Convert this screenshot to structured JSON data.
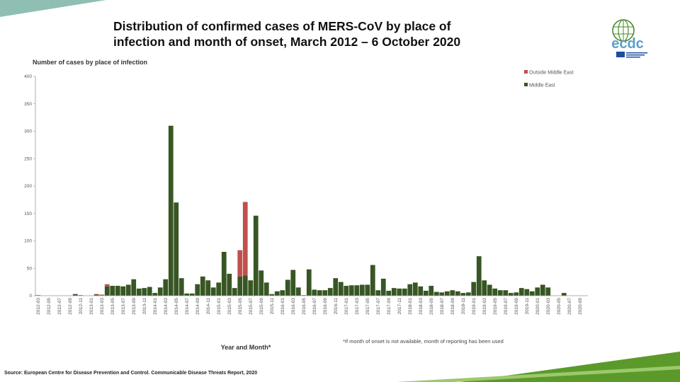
{
  "slide": {
    "title_line1": "Distribution of confirmed cases of MERS-CoV by place of",
    "title_line2": "infection and month of onset, March 2012 – 6 October 2020",
    "source": "Source: European Centre for Disease Prevention and Control. Communicable Disease Threats Report, 2020"
  },
  "logo": {
    "text": "ecdc",
    "icon": "ecdc-globe-logo"
  },
  "colors": {
    "middle_east": "#375623",
    "outside_middle_east": "#C0504D",
    "accent_green": "#5b9a2a",
    "accent_teal": "#8fbfb3"
  },
  "chart_data": {
    "type": "bar",
    "stacked": true,
    "title": "",
    "ylabel": "Number of cases by place of infection",
    "xlabel": "Year and Month*",
    "note": "*If month of onset is not available, month of reporting has been used",
    "ylim": [
      0,
      400
    ],
    "yticks": [
      0,
      50,
      100,
      150,
      200,
      250,
      300,
      350,
      400
    ],
    "legend_position": "top-right",
    "x_tick_labels": [
      "2012-03",
      "2012-05",
      "2012-07",
      "2012-09",
      "2012-11",
      "2013-01",
      "2013-03",
      "2013-05",
      "2013-07",
      "2013-09",
      "2013-11",
      "2014-01",
      "2014-03",
      "2014-05",
      "2014-07",
      "2014-09",
      "2014-11",
      "2015-01",
      "2015-03",
      "2015-05",
      "2015-07",
      "2015-09",
      "2015-11",
      "2016-01",
      "2016-03",
      "2016-05",
      "2016-07",
      "2016-09",
      "2016-11",
      "2017-01",
      "2017-03",
      "2017-05",
      "2017-07",
      "2017-09",
      "2017-11",
      "2018-01",
      "2018-03",
      "2018-05",
      "2018-07",
      "2018-09",
      "2018-11",
      "2019-01",
      "2019-03",
      "2019-05",
      "2019-07",
      "2019-09",
      "2019-11",
      "2020-01",
      "2020-03",
      "2020-05",
      "2020-07",
      "2020-09"
    ],
    "categories": [
      "2012-03",
      "2012-04",
      "2012-05",
      "2012-06",
      "2012-07",
      "2012-08",
      "2012-09",
      "2012-10",
      "2012-11",
      "2012-12",
      "2013-01",
      "2013-02",
      "2013-03",
      "2013-04",
      "2013-05",
      "2013-06",
      "2013-07",
      "2013-08",
      "2013-09",
      "2013-10",
      "2013-11",
      "2013-12",
      "2014-01",
      "2014-02",
      "2014-03",
      "2014-04",
      "2014-05",
      "2014-06",
      "2014-07",
      "2014-08",
      "2014-09",
      "2014-10",
      "2014-11",
      "2014-12",
      "2015-01",
      "2015-02",
      "2015-03",
      "2015-04",
      "2015-05",
      "2015-06",
      "2015-07",
      "2015-08",
      "2015-09",
      "2015-10",
      "2015-11",
      "2015-12",
      "2016-01",
      "2016-02",
      "2016-03",
      "2016-04",
      "2016-05",
      "2016-06",
      "2016-07",
      "2016-08",
      "2016-09",
      "2016-10",
      "2016-11",
      "2016-12",
      "2017-01",
      "2017-02",
      "2017-03",
      "2017-04",
      "2017-05",
      "2017-06",
      "2017-07",
      "2017-08",
      "2017-09",
      "2017-10",
      "2017-11",
      "2017-12",
      "2018-01",
      "2018-02",
      "2018-03",
      "2018-04",
      "2018-05",
      "2018-06",
      "2018-07",
      "2018-08",
      "2018-09",
      "2018-10",
      "2018-11",
      "2018-12",
      "2019-01",
      "2019-02",
      "2019-03",
      "2019-04",
      "2019-05",
      "2019-06",
      "2019-07",
      "2019-08",
      "2019-09",
      "2019-10",
      "2019-11",
      "2019-12",
      "2020-01",
      "2020-02",
      "2020-03",
      "2020-04",
      "2020-05",
      "2020-06",
      "2020-07",
      "2020-08",
      "2020-09",
      "2020-10"
    ],
    "series": [
      {
        "name": "Outside Middle East",
        "color": "#C0504D",
        "values": [
          0,
          0,
          0,
          0,
          0,
          0,
          0,
          0,
          0,
          0,
          0,
          1,
          2,
          4,
          0,
          0,
          0,
          0,
          0,
          0,
          0,
          0,
          0,
          0,
          0,
          0,
          0,
          0,
          0,
          0,
          0,
          0,
          0,
          0,
          0,
          0,
          0,
          0,
          48,
          134,
          0,
          0,
          0,
          0,
          0,
          0,
          0,
          0,
          0,
          0,
          0,
          0,
          0,
          0,
          0,
          0,
          0,
          0,
          0,
          0,
          0,
          0,
          0,
          0,
          0,
          0,
          0,
          0,
          0,
          0,
          0,
          0,
          0,
          0,
          0,
          0,
          0,
          0,
          0,
          0,
          0,
          0,
          0,
          0,
          0,
          0,
          0,
          0,
          0,
          0,
          0,
          0,
          0,
          0,
          0,
          0,
          0,
          0,
          0,
          0,
          0,
          0,
          0,
          0
        ]
      },
      {
        "name": "Middle East",
        "color": "#375623",
        "values": [
          1,
          0,
          0,
          0,
          0,
          0,
          0,
          3,
          1,
          0,
          0,
          2,
          0,
          17,
          18,
          18,
          17,
          20,
          30,
          13,
          14,
          16,
          5,
          15,
          30,
          310,
          170,
          32,
          4,
          4,
          21,
          35,
          28,
          15,
          24,
          80,
          40,
          14,
          35,
          37,
          28,
          146,
          46,
          24,
          3,
          8,
          10,
          29,
          47,
          15,
          1,
          48,
          11,
          10,
          10,
          14,
          32,
          25,
          18,
          19,
          19,
          20,
          20,
          56,
          10,
          31,
          9,
          14,
          13,
          13,
          21,
          24,
          17,
          9,
          18,
          7,
          6,
          8,
          10,
          8,
          5,
          6,
          25,
          72,
          28,
          20,
          13,
          10,
          10,
          5,
          6,
          14,
          12,
          8,
          15,
          20,
          15,
          0,
          0,
          5,
          0,
          0,
          0,
          0
        ]
      }
    ]
  }
}
